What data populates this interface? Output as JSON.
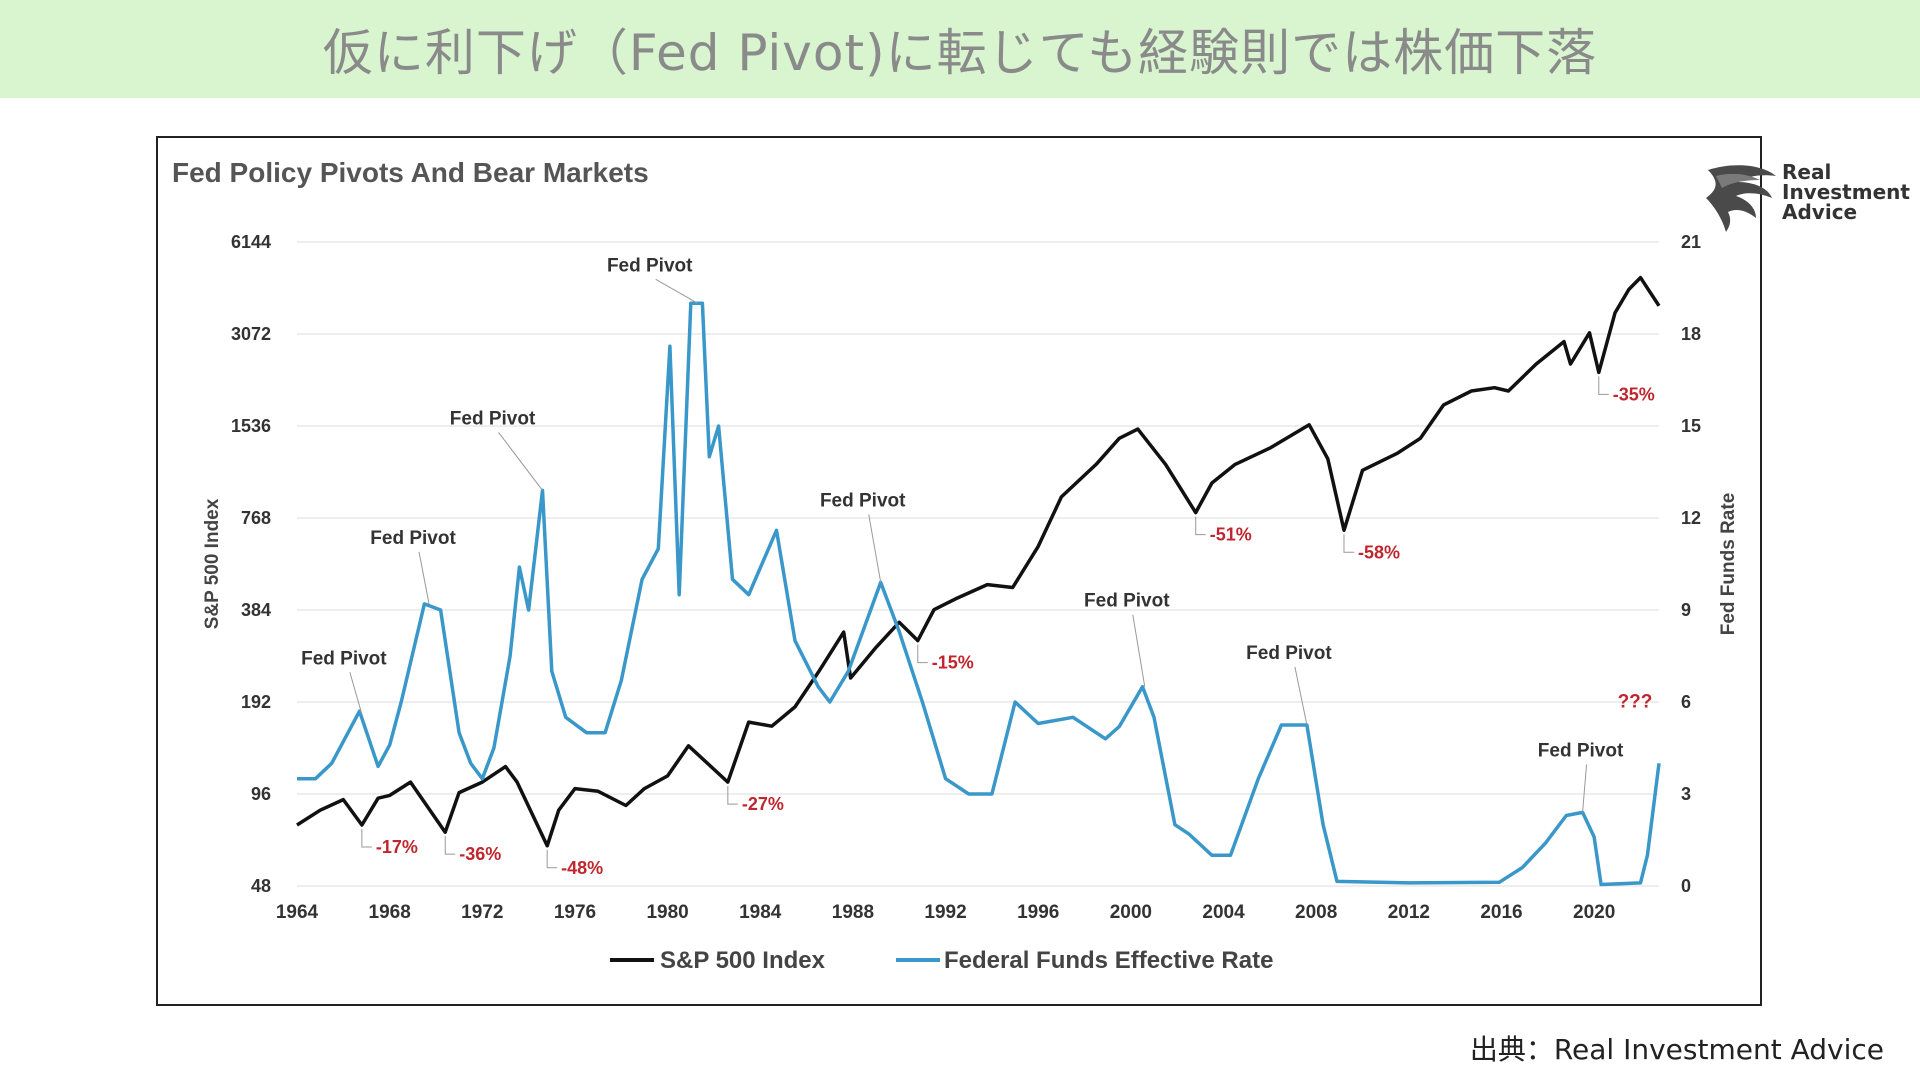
{
  "banner": {
    "title": "仮に利下げ（Fed Pivot)に転じても経験則では株価下落"
  },
  "source_text": "出典：Real Investment Advice",
  "logo": {
    "icon": "eagle-head-icon",
    "text_lines": [
      "Real",
      "Investment",
      "Advice"
    ]
  },
  "colors": {
    "banner_bg": "#d8f5cf",
    "sp500": "#111111",
    "fed_rate": "#3a97c9",
    "drawdown_label": "#c0262d",
    "grid": "#dddddd"
  },
  "chart_data": {
    "type": "line",
    "title": "Fed Policy Pivots And Bear Markets",
    "ylabel_left": "S&P 500 Index",
    "ylabel_right": "Fed Funds Rate",
    "y_left_scale": "log2",
    "y_left_ticks": [
      48,
      96,
      192,
      384,
      768,
      1536,
      3072,
      6144
    ],
    "y_left_lim": [
      48,
      6144
    ],
    "y_right_ticks": [
      0,
      3,
      6,
      9,
      12,
      15,
      18,
      21
    ],
    "y_right_lim": [
      0,
      21
    ],
    "x_ticks": [
      1964,
      1968,
      1972,
      1976,
      1980,
      1984,
      1988,
      1992,
      1996,
      2000,
      2004,
      2008,
      2012,
      2016,
      2020
    ],
    "x_lim": [
      1964,
      2022.8
    ],
    "grid": true,
    "legend_position": "bottom",
    "series": [
      {
        "name": "S&P 500 Index",
        "axis": "left",
        "points": [
          [
            1964.0,
            76
          ],
          [
            1965.0,
            85
          ],
          [
            1966.0,
            92
          ],
          [
            1966.8,
            76
          ],
          [
            1967.5,
            93
          ],
          [
            1968.0,
            95
          ],
          [
            1968.9,
            105
          ],
          [
            1970.4,
            72
          ],
          [
            1971.0,
            97
          ],
          [
            1972.0,
            105
          ],
          [
            1973.0,
            118
          ],
          [
            1973.5,
            105
          ],
          [
            1974.8,
            65
          ],
          [
            1975.3,
            85
          ],
          [
            1976.0,
            100
          ],
          [
            1977.0,
            98
          ],
          [
            1978.2,
            88
          ],
          [
            1979.0,
            100
          ],
          [
            1980.0,
            110
          ],
          [
            1980.9,
            138
          ],
          [
            1982.6,
            105
          ],
          [
            1983.5,
            165
          ],
          [
            1984.5,
            160
          ],
          [
            1985.5,
            185
          ],
          [
            1986.5,
            240
          ],
          [
            1987.6,
            325
          ],
          [
            1987.9,
            230
          ],
          [
            1989.0,
            290
          ],
          [
            1990.0,
            350
          ],
          [
            1990.8,
            305
          ],
          [
            1991.5,
            385
          ],
          [
            1992.5,
            420
          ],
          [
            1993.8,
            465
          ],
          [
            1994.9,
            455
          ],
          [
            1996.0,
            620
          ],
          [
            1997.0,
            900
          ],
          [
            1998.5,
            1150
          ],
          [
            1999.5,
            1400
          ],
          [
            2000.3,
            1500
          ],
          [
            2001.5,
            1150
          ],
          [
            2002.8,
            800
          ],
          [
            2003.5,
            1000
          ],
          [
            2004.5,
            1150
          ],
          [
            2006.0,
            1300
          ],
          [
            2007.7,
            1550
          ],
          [
            2008.5,
            1200
          ],
          [
            2009.2,
            700
          ],
          [
            2010.0,
            1100
          ],
          [
            2011.5,
            1250
          ],
          [
            2012.5,
            1400
          ],
          [
            2013.5,
            1800
          ],
          [
            2014.7,
            2000
          ],
          [
            2015.7,
            2050
          ],
          [
            2016.3,
            2000
          ],
          [
            2017.5,
            2450
          ],
          [
            2018.7,
            2900
          ],
          [
            2018.98,
            2450
          ],
          [
            2019.8,
            3100
          ],
          [
            2020.2,
            2300
          ],
          [
            2020.9,
            3600
          ],
          [
            2021.5,
            4300
          ],
          [
            2022.0,
            4700
          ],
          [
            2022.8,
            3800
          ]
        ]
      },
      {
        "name": "Federal Funds Effective Rate",
        "axis": "right",
        "points": [
          [
            1964.0,
            3.5
          ],
          [
            1964.8,
            3.5
          ],
          [
            1965.5,
            4.0
          ],
          [
            1966.7,
            5.7
          ],
          [
            1967.5,
            3.9
          ],
          [
            1968.0,
            4.6
          ],
          [
            1968.5,
            6.0
          ],
          [
            1969.5,
            9.2
          ],
          [
            1970.2,
            9.0
          ],
          [
            1971.0,
            5.0
          ],
          [
            1971.5,
            4.0
          ],
          [
            1972.0,
            3.5
          ],
          [
            1972.5,
            4.5
          ],
          [
            1973.2,
            7.5
          ],
          [
            1973.6,
            10.4
          ],
          [
            1974.0,
            9.0
          ],
          [
            1974.6,
            12.9
          ],
          [
            1975.0,
            7.0
          ],
          [
            1975.6,
            5.5
          ],
          [
            1976.5,
            5.0
          ],
          [
            1977.3,
            5.0
          ],
          [
            1978.0,
            6.7
          ],
          [
            1978.9,
            10.0
          ],
          [
            1979.6,
            11.0
          ],
          [
            1980.1,
            17.6
          ],
          [
            1980.5,
            9.5
          ],
          [
            1981.0,
            19.0
          ],
          [
            1981.5,
            19.0
          ],
          [
            1981.8,
            14.0
          ],
          [
            1982.2,
            15.0
          ],
          [
            1982.8,
            10.0
          ],
          [
            1983.5,
            9.5
          ],
          [
            1984.7,
            11.6
          ],
          [
            1985.5,
            8.0
          ],
          [
            1986.5,
            6.5
          ],
          [
            1987.0,
            6.0
          ],
          [
            1987.8,
            7.0
          ],
          [
            1989.2,
            9.9
          ],
          [
            1990.0,
            8.3
          ],
          [
            1991.0,
            6.0
          ],
          [
            1992.0,
            3.5
          ],
          [
            1993.0,
            3.0
          ],
          [
            1994.0,
            3.0
          ],
          [
            1995.0,
            6.0
          ],
          [
            1996.0,
            5.3
          ],
          [
            1997.5,
            5.5
          ],
          [
            1998.9,
            4.8
          ],
          [
            1999.5,
            5.2
          ],
          [
            2000.5,
            6.5
          ],
          [
            2001.0,
            5.5
          ],
          [
            2001.9,
            2.0
          ],
          [
            2002.5,
            1.7
          ],
          [
            2003.5,
            1.0
          ],
          [
            2004.3,
            1.0
          ],
          [
            2005.5,
            3.5
          ],
          [
            2006.5,
            5.25
          ],
          [
            2007.6,
            5.25
          ],
          [
            2008.3,
            2.0
          ],
          [
            2008.9,
            0.15
          ],
          [
            2012.0,
            0.1
          ],
          [
            2015.9,
            0.12
          ],
          [
            2016.9,
            0.6
          ],
          [
            2017.9,
            1.4
          ],
          [
            2018.8,
            2.3
          ],
          [
            2019.5,
            2.4
          ],
          [
            2020.0,
            1.6
          ],
          [
            2020.3,
            0.05
          ],
          [
            2022.0,
            0.1
          ],
          [
            2022.3,
            1.0
          ],
          [
            2022.8,
            4.0
          ]
        ]
      }
    ],
    "annotations_pivot": [
      {
        "text": "Fed Pivot",
        "x": 1966.8,
        "y_right": 5.6
      },
      {
        "text": "Fed Pivot",
        "x": 1969.7,
        "y_right": 9.2
      },
      {
        "text": "Fed Pivot",
        "x": 1974.6,
        "y_right": 12.9
      },
      {
        "text": "Fed Pivot",
        "x": 1981.3,
        "y_right": 19.0
      },
      {
        "text": "Fed Pivot",
        "x": 1989.2,
        "y_right": 9.9
      },
      {
        "text": "Fed Pivot",
        "x": 2000.6,
        "y_right": 6.5
      },
      {
        "text": "Fed Pivot",
        "x": 2007.6,
        "y_right": 5.25
      },
      {
        "text": "Fed Pivot",
        "x": 2019.5,
        "y_right": 2.4
      }
    ],
    "annotations_drawdown": [
      {
        "text": "-17%",
        "x": 1966.8,
        "y_left": 76
      },
      {
        "text": "-36%",
        "x": 1970.4,
        "y_left": 72
      },
      {
        "text": "-48%",
        "x": 1974.8,
        "y_left": 65
      },
      {
        "text": "-27%",
        "x": 1982.6,
        "y_left": 105
      },
      {
        "text": "-15%",
        "x": 1990.8,
        "y_left": 305
      },
      {
        "text": "-51%",
        "x": 2002.8,
        "y_left": 800
      },
      {
        "text": "-58%",
        "x": 2009.2,
        "y_left": 700
      },
      {
        "text": "-35%",
        "x": 2020.2,
        "y_left": 2300
      },
      {
        "text": "???",
        "x": 2022.8,
        "y_right": 4.0
      }
    ]
  }
}
